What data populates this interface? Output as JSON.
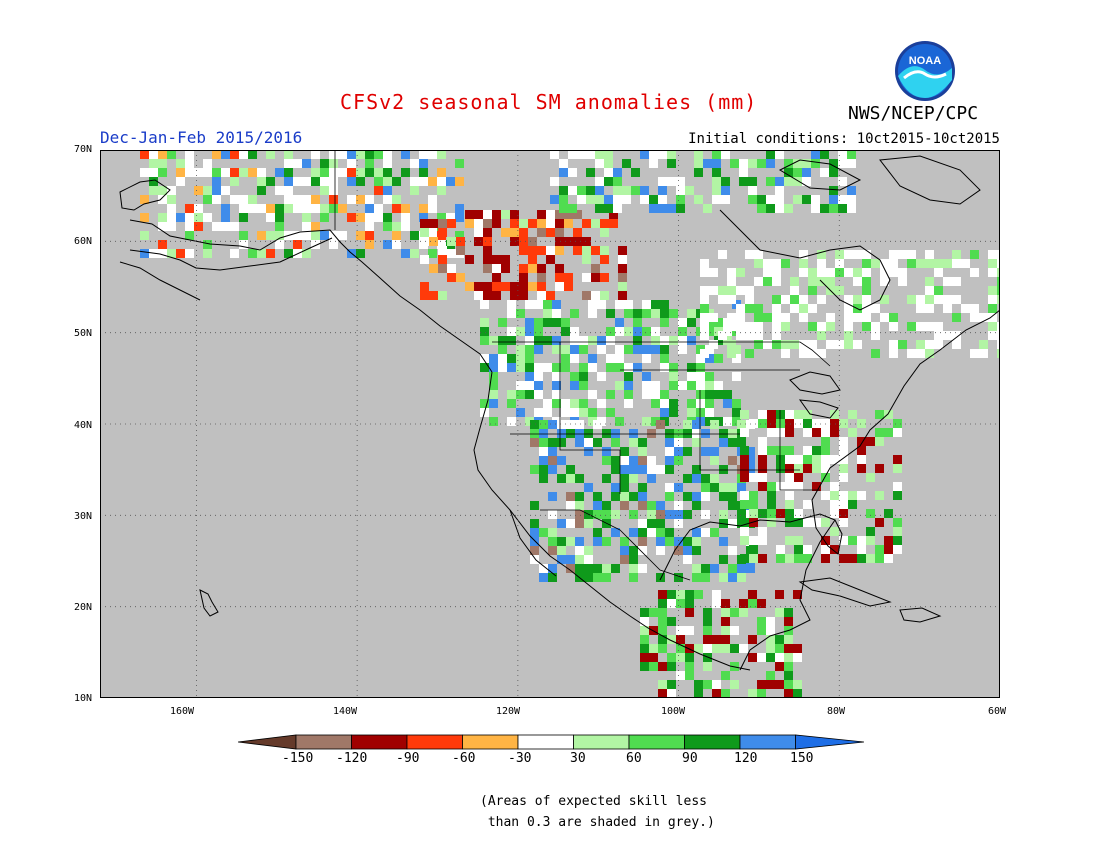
{
  "title": "CFSv2 seasonal SM anomalies (mm)",
  "period": "Dec-Jan-Feb 2015/2016",
  "initial_conditions": "Initial conditions: 10ct2015-10ct2015",
  "agency": "NWS/NCEP/CPC",
  "logo_text": "NOAA",
  "map": {
    "lat_labels": [
      "70N",
      "60N",
      "50N",
      "40N",
      "30N",
      "20N",
      "10N"
    ],
    "lon_labels": [
      "160W",
      "140W",
      "120W",
      "100W",
      "80W",
      "60W"
    ],
    "extent": {
      "lon_min": -172,
      "lon_max": -60,
      "lat_min": 10,
      "lat_max": 70
    },
    "background_color": "#c0c0c0"
  },
  "colorbar": {
    "labels": [
      "-150",
      "-120",
      "-90",
      "-60",
      "-30",
      "30",
      "60",
      "90",
      "120",
      "150"
    ],
    "colors": [
      "#653a2a",
      "#a07868",
      "#a00000",
      "#ff3a0a",
      "#ffb444",
      "#ffffff",
      "#b2f5a4",
      "#50dc50",
      "#0f9a1b",
      "#3f8cea",
      "#1e6ee6"
    ]
  },
  "note": "(Areas of expected skill less\n than 0.3 are shaded in grey.)"
}
